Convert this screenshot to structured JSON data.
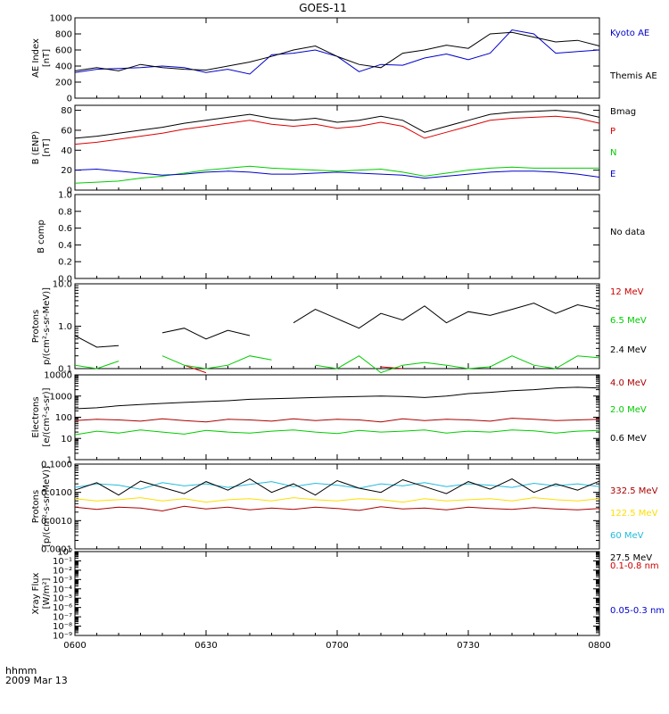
{
  "title": "GOES-11",
  "footer": {
    "line1": "hhmm",
    "line2": "2009 Mar 13"
  },
  "x_axis": {
    "ticks": [
      "0600",
      "0630",
      "0700",
      "0730",
      "0800"
    ]
  },
  "chart_data": [
    {
      "type": "line",
      "id": "ae",
      "ylabel": [
        "AE Index",
        "[nT]"
      ],
      "scale": "linear",
      "ylim": [
        0,
        1000
      ],
      "yticks": [
        [
          "0",
          0
        ],
        [
          "200",
          200
        ],
        [
          "400",
          400
        ],
        [
          "600",
          600
        ],
        [
          "800",
          800
        ],
        [
          "1000",
          1000
        ]
      ],
      "x": [
        0,
        5,
        10,
        15,
        20,
        25,
        30,
        35,
        40,
        45,
        50,
        55,
        60,
        65,
        70,
        75,
        80,
        85,
        90,
        95,
        100,
        105,
        110,
        115,
        120
      ],
      "series": [
        {
          "name": "Kyoto AE",
          "color": "#0000cc",
          "values": [
            320,
            360,
            370,
            380,
            400,
            380,
            320,
            360,
            300,
            540,
            560,
            600,
            520,
            330,
            420,
            410,
            500,
            550,
            480,
            560,
            850,
            800,
            560,
            580,
            600
          ]
        },
        {
          "name": "Themis AE",
          "color": "#000000",
          "values": [
            340,
            380,
            340,
            420,
            380,
            360,
            350,
            400,
            450,
            520,
            600,
            650,
            520,
            420,
            380,
            560,
            600,
            660,
            620,
            800,
            820,
            760,
            700,
            720,
            650
          ]
        }
      ]
    },
    {
      "type": "line",
      "id": "b",
      "ylabel": [
        "B (ENP)",
        "[nT]"
      ],
      "scale": "linear",
      "ylim": [
        0,
        85
      ],
      "yticks": [
        [
          "0",
          0
        ],
        [
          "20",
          20
        ],
        [
          "40",
          40
        ],
        [
          "60",
          60
        ],
        [
          "80",
          80
        ]
      ],
      "x": [
        0,
        5,
        10,
        15,
        20,
        25,
        30,
        35,
        40,
        45,
        50,
        55,
        60,
        65,
        70,
        75,
        80,
        85,
        90,
        95,
        100,
        105,
        110,
        115,
        120
      ],
      "series": [
        {
          "name": "Bmag",
          "color": "#000000",
          "values": [
            52,
            54,
            57,
            60,
            63,
            67,
            70,
            73,
            76,
            72,
            70,
            72,
            68,
            70,
            74,
            70,
            58,
            64,
            70,
            76,
            78,
            79,
            80,
            78,
            73
          ]
        },
        {
          "name": "P",
          "color": "#dd0000",
          "values": [
            46,
            48,
            51,
            54,
            57,
            61,
            64,
            67,
            70,
            66,
            64,
            66,
            62,
            64,
            68,
            64,
            52,
            58,
            64,
            70,
            72,
            73,
            74,
            72,
            67
          ]
        },
        {
          "name": "N",
          "color": "#00cc00",
          "values": [
            7,
            8,
            9,
            12,
            14,
            17,
            20,
            22,
            24,
            22,
            21,
            20,
            19,
            20,
            21,
            18,
            14,
            17,
            20,
            22,
            23,
            22,
            22,
            22,
            22
          ]
        },
        {
          "name": "E",
          "color": "#0000cc",
          "values": [
            20,
            21,
            19,
            17,
            15,
            16,
            18,
            19,
            18,
            16,
            16,
            17,
            18,
            17,
            16,
            15,
            12,
            14,
            16,
            18,
            19,
            19,
            18,
            16,
            13
          ]
        }
      ]
    },
    {
      "type": "line",
      "id": "bcomp",
      "ylabel": [
        "B comp"
      ],
      "scale": "linear",
      "ylim": [
        0,
        1
      ],
      "yticks": [
        [
          "0.0",
          0
        ],
        [
          "0.2",
          0.2
        ],
        [
          "0.4",
          0.4
        ],
        [
          "0.6",
          0.6
        ],
        [
          "0.8",
          0.8
        ],
        [
          "1.0",
          1.0
        ]
      ],
      "x": [],
      "series": [],
      "label_right": "No data"
    },
    {
      "type": "line",
      "id": "protons",
      "ylabel": [
        "Protons",
        "p/(cm²-s-sr-MeV)]"
      ],
      "scale": "log",
      "ylim": [
        0.1,
        10
      ],
      "yticks": [
        [
          "0.1",
          0.1
        ],
        [
          "1.0",
          1
        ],
        [
          "10.0",
          10
        ]
      ],
      "x": [
        0,
        5,
        10,
        15,
        20,
        25,
        30,
        35,
        40,
        45,
        50,
        55,
        60,
        65,
        70,
        75,
        80,
        85,
        90,
        95,
        100,
        105,
        110,
        115,
        120
      ],
      "series": [
        {
          "name": "12 MeV",
          "color": "#cc0000",
          "values": [
            null,
            null,
            null,
            null,
            null,
            0.12,
            0.08,
            null,
            null,
            null,
            null,
            null,
            null,
            null,
            0.11,
            0.1,
            null,
            null,
            null,
            null,
            null,
            null,
            0.18,
            null,
            0.16
          ]
        },
        {
          "name": "6.5 MeV",
          "color": "#00cc00",
          "values": [
            0.12,
            0.1,
            0.15,
            null,
            0.2,
            0.12,
            0.1,
            0.12,
            0.2,
            0.16,
            null,
            0.12,
            0.1,
            0.2,
            0.08,
            0.12,
            0.14,
            0.12,
            0.1,
            0.11,
            0.2,
            0.12,
            0.1,
            0.2,
            0.18
          ]
        },
        {
          "name": "2.4 MeV",
          "color": "#000000",
          "values": [
            0.6,
            0.32,
            0.35,
            null,
            0.7,
            0.9,
            0.5,
            0.8,
            0.6,
            null,
            1.2,
            2.5,
            1.5,
            0.9,
            2.0,
            1.4,
            3.0,
            1.2,
            2.2,
            1.8,
            2.5,
            3.5,
            2.0,
            3.2,
            2.5
          ]
        }
      ]
    },
    {
      "type": "line",
      "id": "electrons",
      "ylabel": [
        "Electrons",
        "[e/(cm²-s-sr)]"
      ],
      "scale": "log",
      "ylim": [
        1,
        10000
      ],
      "yticks": [
        [
          "1",
          1
        ],
        [
          "10",
          10
        ],
        [
          "100",
          100
        ],
        [
          "1000",
          1000
        ],
        [
          "10000",
          10000
        ]
      ],
      "x": [
        0,
        5,
        10,
        15,
        20,
        25,
        30,
        35,
        40,
        45,
        50,
        55,
        60,
        65,
        70,
        75,
        80,
        85,
        90,
        95,
        100,
        105,
        110,
        115,
        120
      ],
      "series": [
        {
          "name": "4.0 MeV",
          "color": "#aa0000",
          "values": [
            70,
            80,
            75,
            65,
            85,
            70,
            60,
            80,
            75,
            65,
            85,
            70,
            80,
            75,
            60,
            85,
            70,
            80,
            75,
            65,
            90,
            80,
            70,
            75,
            80
          ]
        },
        {
          "name": "2.0 MeV",
          "color": "#00cc00",
          "values": [
            15,
            22,
            18,
            25,
            20,
            16,
            24,
            20,
            18,
            22,
            25,
            20,
            17,
            24,
            20,
            22,
            25,
            18,
            22,
            20,
            25,
            23,
            18,
            22,
            24
          ]
        },
        {
          "name": "0.6 MeV",
          "color": "#000000",
          "values": [
            250,
            280,
            350,
            400,
            450,
            500,
            550,
            600,
            700,
            750,
            800,
            850,
            900,
            950,
            1000,
            950,
            850,
            1000,
            1300,
            1500,
            1800,
            2000,
            2400,
            2600,
            2400
          ]
        }
      ]
    },
    {
      "type": "line",
      "id": "protons2",
      "ylabel": [
        "Protons",
        "[p/(cm²-s-sr-MeV)]"
      ],
      "scale": "log",
      "ylim": [
        0.0001,
        0.1
      ],
      "yticks": [
        [
          "0.0001",
          0.0001
        ],
        [
          "0.0010",
          0.001
        ],
        [
          "0.0100",
          0.01
        ],
        [
          "0.1000",
          0.1
        ]
      ],
      "x": [
        0,
        5,
        10,
        15,
        20,
        25,
        30,
        35,
        40,
        45,
        50,
        55,
        60,
        65,
        70,
        75,
        80,
        85,
        90,
        95,
        100,
        105,
        110,
        115,
        120
      ],
      "series": [
        {
          "name": "332.5 MeV",
          "color": "#aa0000",
          "values": [
            0.003,
            0.0025,
            0.003,
            0.0028,
            0.0022,
            0.0032,
            0.0026,
            0.003,
            0.0024,
            0.0028,
            0.0025,
            0.003,
            0.0027,
            0.0023,
            0.0031,
            0.0026,
            0.0028,
            0.0024,
            0.003,
            0.0027,
            0.0025,
            0.0029,
            0.0026,
            0.0024,
            0.0027
          ]
        },
        {
          "name": "122.5 MeV",
          "color": "#ffdd00",
          "values": [
            0.006,
            0.005,
            0.0055,
            0.0065,
            0.005,
            0.006,
            0.0045,
            0.0055,
            0.006,
            0.005,
            0.0065,
            0.0055,
            0.005,
            0.006,
            0.0055,
            0.0045,
            0.006,
            0.005,
            0.0055,
            0.006,
            0.005,
            0.0065,
            0.0055,
            0.005,
            0.006
          ]
        },
        {
          "name": "60 MeV",
          "color": "#22bbdd",
          "values": [
            0.015,
            0.02,
            0.018,
            0.013,
            0.022,
            0.017,
            0.02,
            0.015,
            0.019,
            0.024,
            0.016,
            0.021,
            0.018,
            0.014,
            0.02,
            0.017,
            0.022,
            0.016,
            0.02,
            0.018,
            0.015,
            0.021,
            0.017,
            0.02,
            0.016
          ]
        },
        {
          "name": "27.5 MeV",
          "color": "#000000",
          "values": [
            0.012,
            0.022,
            0.008,
            0.025,
            0.015,
            0.009,
            0.024,
            0.012,
            0.03,
            0.01,
            0.02,
            0.008,
            0.026,
            0.014,
            0.01,
            0.028,
            0.016,
            0.009,
            0.024,
            0.013,
            0.03,
            0.01,
            0.02,
            0.012,
            0.025
          ]
        }
      ]
    },
    {
      "type": "line",
      "id": "xray",
      "ylabel": [
        "Xray Flux",
        "[W/m²]"
      ],
      "scale": "log",
      "ylim": [
        1e-09,
        1
      ],
      "yticks": [
        [
          "10⁻⁹",
          1e-09
        ],
        [
          "10⁻⁸",
          1e-08
        ],
        [
          "10⁻⁷",
          1e-07
        ],
        [
          "10⁻⁶",
          1e-06
        ],
        [
          "10⁻⁵",
          1e-05
        ],
        [
          "10⁻⁴",
          0.0001
        ],
        [
          "10⁻³",
          0.001
        ],
        [
          "10⁻²",
          0.01
        ],
        [
          "10⁻¹",
          0.1
        ],
        [
          "10⁰",
          1
        ]
      ],
      "x": [],
      "series": [
        {
          "name": "0.1-0.8 nm",
          "color": "#cc0000",
          "values": []
        },
        {
          "name": "0.05-0.3 nm",
          "color": "#0000cc",
          "values": []
        }
      ]
    }
  ]
}
